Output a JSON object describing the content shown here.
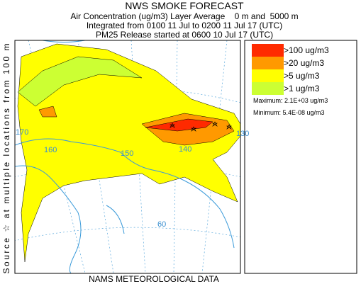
{
  "header": {
    "title": "NWS SMOKE FORECAST",
    "lines": [
      "Air Concentration (ug/m3) Layer Average    0 m and  5000 m",
      "Integrated from 0100 11 Jul to 0200 11 Jul 17 (UTC)",
      "PM25 Release started at 0600 10 Jul 17 (UTC)"
    ]
  },
  "side_label": "Source ☆ at multiple locations from 100 m",
  "footer": "NAMS METEOROLOGICAL DATA",
  "legend": {
    "items": [
      {
        "label": ">100 ug/m3",
        "color": "#ff2a00"
      },
      {
        "label": ">20 ug/m3",
        "color": "#ff9900"
      },
      {
        "label": ">5 ug/m3",
        "color": "#ffff00"
      },
      {
        "label": ">1 ug/m3",
        "color": "#ccff33"
      }
    ],
    "maximum": "Maximum: 2.1E+03 ug/m3",
    "minimum": "Minimum: 5.4E-08 ug/m3"
  },
  "map": {
    "labels": [
      "170",
      "160",
      "150",
      "140",
      "130",
      "60"
    ]
  }
}
